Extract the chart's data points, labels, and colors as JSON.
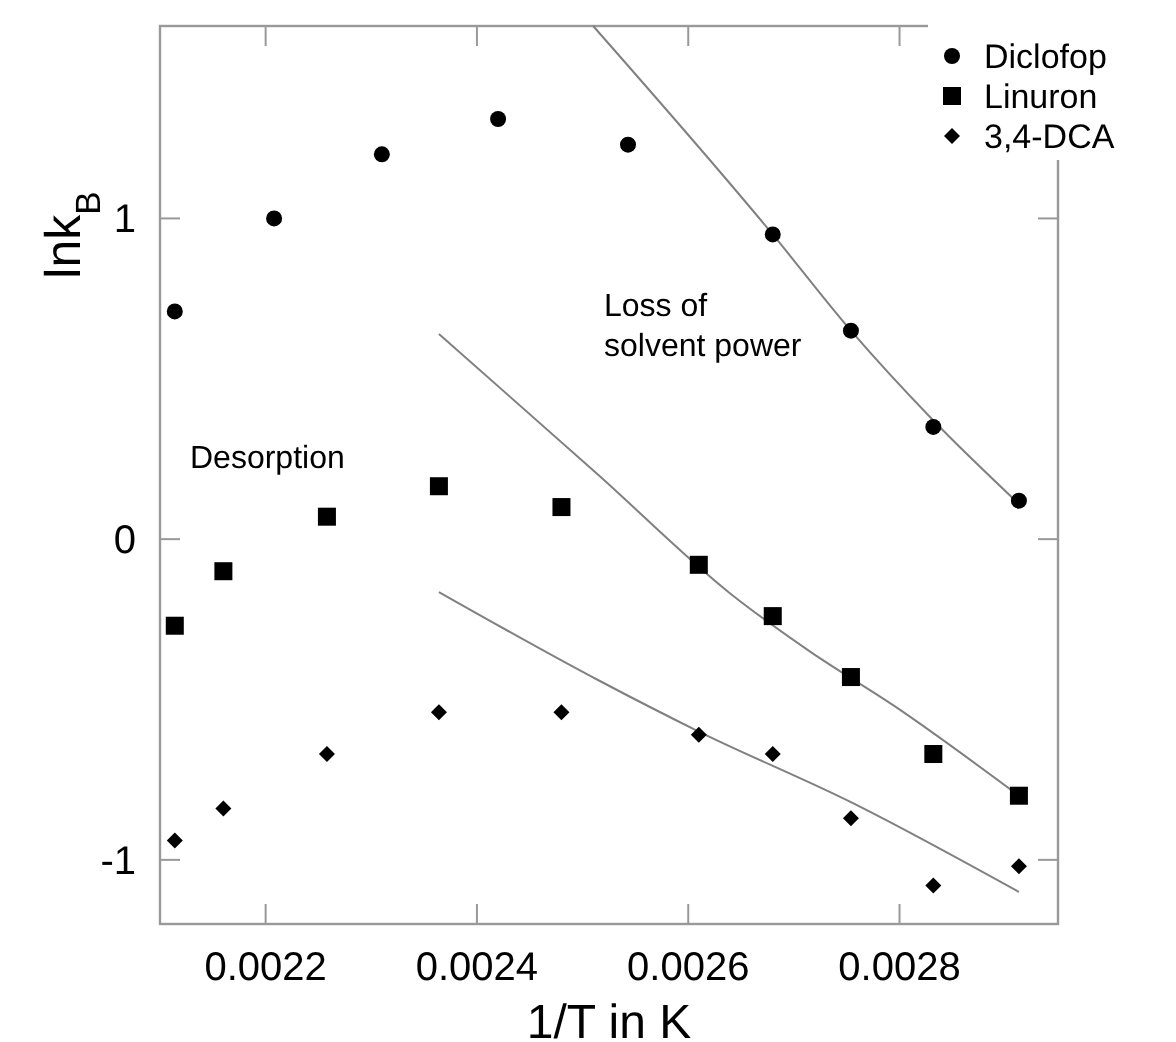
{
  "chart_data": {
    "type": "scatter",
    "xlabel": "1/T in K",
    "ylabel": "lnk$_{B}$",
    "xlim": [
      0.0021,
      0.00295
    ],
    "ylim": [
      -1.2,
      1.6
    ],
    "xticks": [
      0.0022,
      0.0024,
      0.0026,
      0.0028
    ],
    "yticks": [
      -1,
      0,
      1
    ],
    "grid": false,
    "legend": "top right",
    "annotations": [
      "Desorption",
      "Loss of\nsolvent power"
    ],
    "series": [
      {
        "name": "Diclofop",
        "color": "#000000",
        "marker": "circle",
        "x": [
          0.002114,
          0.002208,
          0.00231,
          0.00242,
          0.002543,
          0.00268,
          0.002754,
          0.002832,
          0.002913
        ],
        "values": [
          0.71,
          1.0,
          1.2,
          1.31,
          1.23,
          0.95,
          0.65,
          0.35,
          0.12
        ]
      },
      {
        "name": "Linuron",
        "color": "#000000",
        "marker": "square",
        "x": [
          0.002114,
          0.00216,
          0.002258,
          0.002364,
          0.00248,
          0.00261,
          0.00268,
          0.002754,
          0.002832,
          0.002913
        ],
        "values": [
          -0.27,
          -0.1,
          0.07,
          0.165,
          0.1,
          -0.08,
          -0.24,
          -0.43,
          -0.67,
          -0.8
        ]
      },
      {
        "name": "3,4-DCA",
        "color": "#000000",
        "marker": "diamond",
        "x": [
          0.002114,
          0.00216,
          0.002258,
          0.002364,
          0.00248,
          0.00261,
          0.00268,
          0.002754,
          0.002832,
          0.002913
        ],
        "values": [
          -0.94,
          -0.84,
          -0.67,
          -0.54,
          -0.54,
          -0.61,
          -0.67,
          -0.87,
          -1.08,
          -1.02
        ]
      },
      {
        "type": "line",
        "color": "#808080",
        "x": [
          0.00251,
          0.00268,
          0.002754,
          0.002832,
          0.002913
        ],
        "values": [
          1.6,
          0.95,
          0.65,
          0.37,
          0.11
        ]
      },
      {
        "type": "line",
        "color": "#808080",
        "x": [
          0.002364,
          0.002515,
          0.00264,
          0.002715,
          0.002795,
          0.002913
        ],
        "values": [
          0.64,
          0.2,
          -0.17,
          -0.35,
          -0.52,
          -0.8
        ]
      },
      {
        "type": "line",
        "color": "#808080",
        "x": [
          0.002364,
          0.002515,
          0.00261,
          0.002754,
          0.002913
        ],
        "values": [
          -0.165,
          -0.44,
          -0.6,
          -0.82,
          -1.1
        ]
      }
    ]
  }
}
